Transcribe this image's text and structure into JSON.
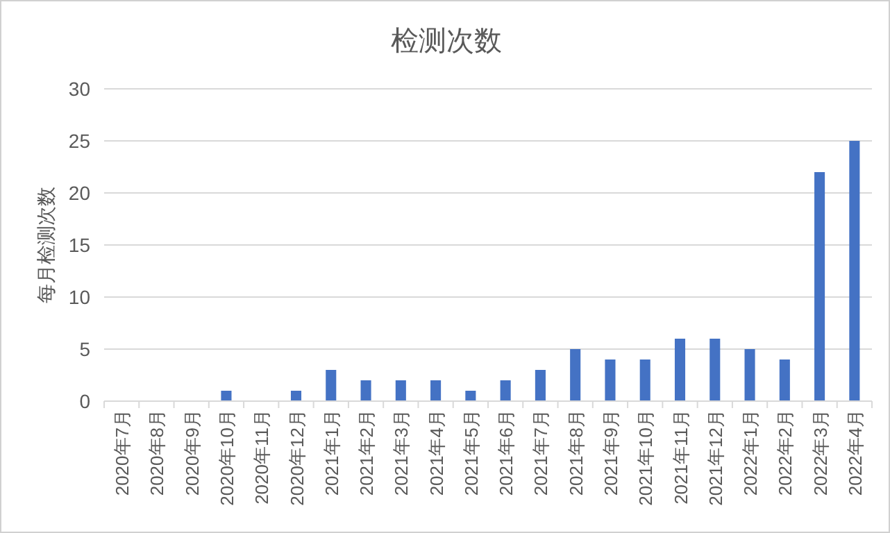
{
  "chart_data": {
    "type": "bar",
    "title": "检测次数",
    "ylabel": "每月检测次数",
    "categories": [
      "2020年7月",
      "2020年8月",
      "2020年9月",
      "2020年10月",
      "2020年11月",
      "2020年12月",
      "2021年1月",
      "2021年2月",
      "2021年3月",
      "2021年4月",
      "2021年5月",
      "2021年6月",
      "2021年7月",
      "2021年8月",
      "2021年9月",
      "2021年10月",
      "2021年11月",
      "2021年12月",
      "2022年1月",
      "2022年2月",
      "2022年3月",
      "2022年4月"
    ],
    "values": [
      0,
      0,
      0,
      1,
      0,
      1,
      3,
      2,
      2,
      2,
      1,
      2,
      3,
      5,
      4,
      4,
      6,
      6,
      5,
      4,
      22,
      25
    ],
    "color": "#4472c4",
    "ylim": [
      0,
      30
    ],
    "yticks": [
      0,
      5,
      10,
      15,
      20,
      25,
      30
    ],
    "grid": "y"
  }
}
